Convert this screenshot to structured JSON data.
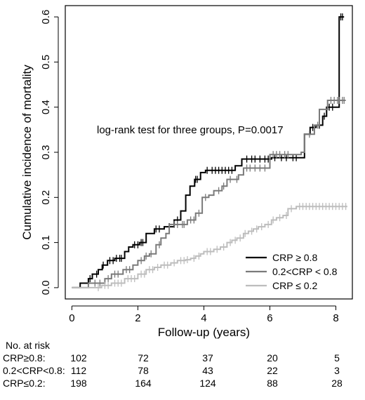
{
  "chart_data": {
    "type": "line",
    "subtype": "kaplan-meier cumulative incidence",
    "ylabel": "Cumulative incidence of mortality",
    "xlabel": "Follow-up (years)",
    "xlim": [
      -0.2,
      8.5
    ],
    "ylim": [
      -0.025,
      0.625
    ],
    "x_ticks": [
      0,
      2,
      4,
      6,
      8
    ],
    "y_ticks": [
      0.0,
      0.1,
      0.2,
      0.3,
      0.4,
      0.5,
      0.6
    ],
    "x_tick_labels": [
      "0",
      "2",
      "4",
      "6",
      "8"
    ],
    "y_tick_labels": [
      "0.0",
      "0.1",
      "0.2",
      "0.3",
      "0.4",
      "0.5",
      "0.6"
    ],
    "annotation": "log-rank test for three groups, P=0.0017",
    "grid": false,
    "legend_position": "bottom-right",
    "series": [
      {
        "name": "CRP ≥ 0.8",
        "color": "#000000",
        "steps": [
          [
            0,
            0
          ],
          [
            0.25,
            0.01
          ],
          [
            0.5,
            0.02
          ],
          [
            0.62,
            0.03
          ],
          [
            0.8,
            0.04
          ],
          [
            0.92,
            0.05
          ],
          [
            1.08,
            0.06
          ],
          [
            1.3,
            0.065
          ],
          [
            1.6,
            0.08
          ],
          [
            1.72,
            0.09
          ],
          [
            1.85,
            0.095
          ],
          [
            2.05,
            0.1
          ],
          [
            2.25,
            0.12
          ],
          [
            2.5,
            0.13
          ],
          [
            2.8,
            0.135
          ],
          [
            3.1,
            0.15
          ],
          [
            3.3,
            0.17
          ],
          [
            3.45,
            0.205
          ],
          [
            3.58,
            0.225
          ],
          [
            3.72,
            0.24
          ],
          [
            3.9,
            0.255
          ],
          [
            4.05,
            0.26
          ],
          [
            4.95,
            0.27
          ],
          [
            5.15,
            0.285
          ],
          [
            6.05,
            0.288
          ],
          [
            6.9,
            0.288
          ],
          [
            7.05,
            0.34
          ],
          [
            7.22,
            0.355
          ],
          [
            7.4,
            0.36
          ],
          [
            7.6,
            0.38
          ],
          [
            7.72,
            0.4
          ],
          [
            7.95,
            0.4
          ],
          [
            8.1,
            0.6
          ],
          [
            8.25,
            0.6
          ]
        ],
        "censor": [
          0.55,
          0.75,
          0.95,
          1.15,
          1.25,
          1.35,
          1.45,
          1.5,
          1.9,
          2.0,
          2.1,
          2.15,
          2.55,
          2.65,
          2.95,
          3.2,
          3.75,
          3.8,
          4.1,
          4.25,
          4.35,
          4.45,
          4.55,
          4.65,
          4.75,
          4.85,
          5.3,
          5.45,
          5.55,
          5.7,
          5.85,
          5.95,
          6.15,
          6.35,
          6.5,
          6.7,
          6.8,
          7.3,
          7.5,
          7.65,
          7.8,
          7.9,
          8.15,
          8.2
        ]
      },
      {
        "name": "0.2<CRP < 0.8",
        "color": "#7a7a7a",
        "steps": [
          [
            0,
            0
          ],
          [
            0.5,
            0.01
          ],
          [
            1.0,
            0.02
          ],
          [
            1.2,
            0.03
          ],
          [
            1.55,
            0.04
          ],
          [
            1.85,
            0.05
          ],
          [
            2.0,
            0.06
          ],
          [
            2.2,
            0.07
          ],
          [
            2.35,
            0.075
          ],
          [
            2.55,
            0.095
          ],
          [
            2.7,
            0.11
          ],
          [
            2.85,
            0.12
          ],
          [
            2.95,
            0.14
          ],
          [
            3.25,
            0.14
          ],
          [
            3.5,
            0.15
          ],
          [
            3.75,
            0.165
          ],
          [
            3.95,
            0.2
          ],
          [
            4.15,
            0.205
          ],
          [
            4.3,
            0.215
          ],
          [
            4.55,
            0.225
          ],
          [
            4.7,
            0.24
          ],
          [
            4.9,
            0.24
          ],
          [
            5.05,
            0.25
          ],
          [
            5.2,
            0.265
          ],
          [
            6.0,
            0.295
          ],
          [
            6.6,
            0.295
          ],
          [
            6.95,
            0.3
          ],
          [
            7.05,
            0.34
          ],
          [
            7.35,
            0.36
          ],
          [
            7.5,
            0.395
          ],
          [
            7.75,
            0.415
          ],
          [
            8.3,
            0.415
          ]
        ],
        "censor": [
          0.7,
          0.85,
          1.1,
          1.3,
          1.4,
          1.65,
          1.75,
          2.1,
          2.25,
          2.4,
          2.65,
          3.1,
          3.2,
          3.35,
          3.4,
          3.6,
          3.7,
          3.85,
          4.05,
          4.45,
          4.6,
          4.8,
          5.0,
          5.3,
          5.4,
          5.55,
          5.7,
          5.85,
          6.1,
          6.2,
          6.3,
          6.45,
          6.55,
          7.2,
          7.45,
          7.85,
          7.95,
          8.05,
          8.1,
          8.2,
          8.25
        ]
      },
      {
        "name": "CRP ≤ 0.2",
        "color": "#bdbdbd",
        "steps": [
          [
            0,
            0
          ],
          [
            0.9,
            0.005
          ],
          [
            1.2,
            0.01
          ],
          [
            1.6,
            0.02
          ],
          [
            2.0,
            0.03
          ],
          [
            2.25,
            0.04
          ],
          [
            2.5,
            0.045
          ],
          [
            2.7,
            0.05
          ],
          [
            3.0,
            0.055
          ],
          [
            3.2,
            0.06
          ],
          [
            3.45,
            0.062
          ],
          [
            3.6,
            0.065
          ],
          [
            3.75,
            0.07
          ],
          [
            3.9,
            0.075
          ],
          [
            4.0,
            0.08
          ],
          [
            4.3,
            0.085
          ],
          [
            4.5,
            0.09
          ],
          [
            4.7,
            0.1
          ],
          [
            4.85,
            0.105
          ],
          [
            5.0,
            0.11
          ],
          [
            5.2,
            0.12
          ],
          [
            5.35,
            0.125
          ],
          [
            5.5,
            0.13
          ],
          [
            5.65,
            0.135
          ],
          [
            5.85,
            0.14
          ],
          [
            6.05,
            0.15
          ],
          [
            6.2,
            0.155
          ],
          [
            6.4,
            0.16
          ],
          [
            6.55,
            0.175
          ],
          [
            6.8,
            0.18
          ],
          [
            8.35,
            0.18
          ]
        ],
        "censor": [
          0.8,
          1.0,
          1.1,
          1.3,
          1.4,
          1.5,
          1.7,
          1.8,
          1.9,
          2.1,
          2.2,
          2.35,
          2.45,
          2.6,
          2.8,
          2.9,
          3.1,
          3.3,
          3.4,
          3.5,
          3.7,
          3.85,
          4.1,
          4.2,
          4.4,
          4.6,
          4.8,
          4.95,
          5.1,
          5.25,
          5.45,
          5.6,
          5.75,
          5.95,
          6.1,
          6.3,
          6.5,
          6.65,
          6.9,
          7.0,
          7.1,
          7.2,
          7.3,
          7.4,
          7.5,
          7.6,
          7.7,
          7.8,
          7.9,
          8.0,
          8.1,
          8.2,
          8.3
        ]
      }
    ]
  },
  "risk_table": {
    "title": "No. at risk",
    "times": [
      0,
      2,
      4,
      6,
      8
    ],
    "rows": [
      {
        "label": "CRP≥0.8:",
        "values": [
          "102",
          "72",
          "37",
          "20",
          "5"
        ]
      },
      {
        "label": "0.2<CRP<0.8:",
        "values": [
          "112",
          "78",
          "43",
          "22",
          "3"
        ]
      },
      {
        "label": "CRP≤0.2:",
        "values": [
          "198",
          "164",
          "124",
          "88",
          "28"
        ]
      }
    ]
  }
}
